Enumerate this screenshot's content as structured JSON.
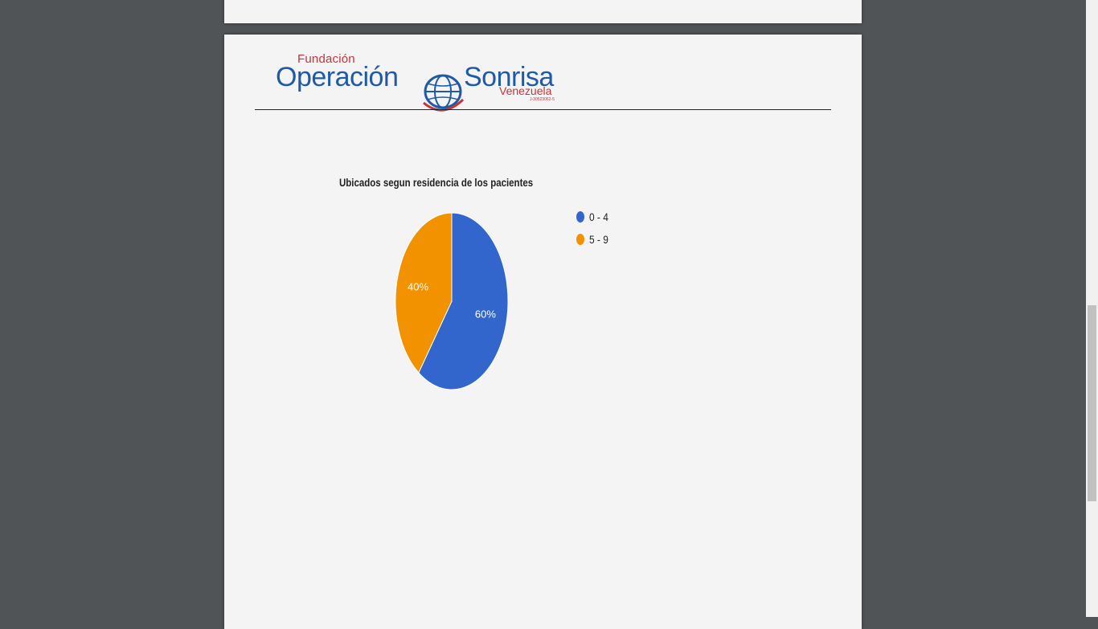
{
  "document": {
    "logo": {
      "fundacion": "Fundación",
      "operacion": "Operación",
      "sonrisa": "Sonrisa",
      "venezuela": "Venezuela",
      "rif": "J-30523062-5"
    }
  },
  "chart_data": {
    "type": "pie",
    "title": "Ubicados segun residencia de los pacientes",
    "categories": [
      "0 - 4",
      "5 - 9"
    ],
    "values": [
      60,
      40
    ],
    "labels": [
      "60%",
      "40%"
    ],
    "colors": [
      "#3366cc",
      "#f39200"
    ],
    "legend": "right"
  },
  "colors": {
    "background": "#505457",
    "page": "#f4f4f4",
    "logo_blue": "#1f5aa6",
    "logo_red": "#c8323a"
  },
  "icons": {
    "logo_globe": "globe-icon"
  }
}
